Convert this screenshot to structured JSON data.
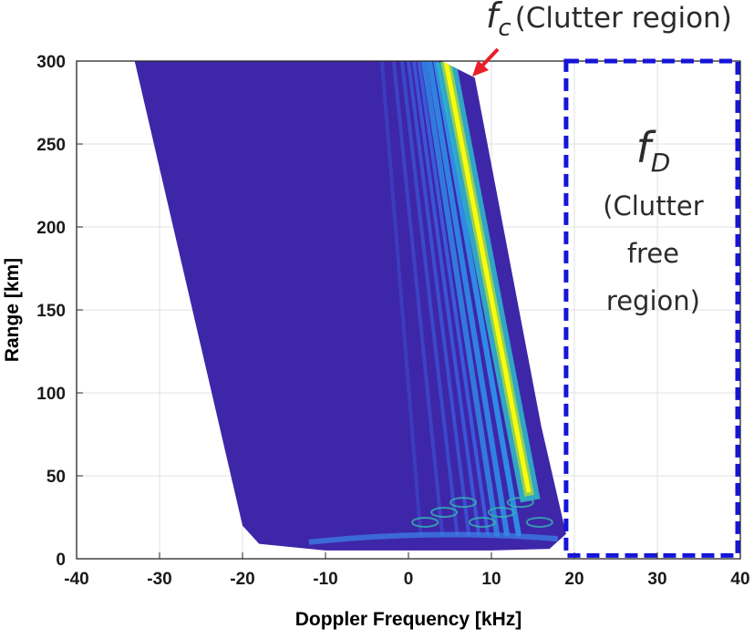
{
  "chart_data": {
    "type": "heatmap",
    "title": "",
    "xlabel": "Doppler Frequency [kHz]",
    "ylabel": "Range [km]",
    "xlim": [
      -40,
      40
    ],
    "ylim": [
      0,
      300
    ],
    "x_ticks": [
      "-40",
      "-30",
      "-20",
      "-10",
      "0",
      "10",
      "20",
      "30",
      "40"
    ],
    "y_ticks": [
      "0",
      "50",
      "100",
      "150",
      "200",
      "250",
      "300"
    ],
    "grid": true,
    "colormap": "parula",
    "colors": {
      "background_level": "#3e26a8",
      "peak_level": "#f9fb0e",
      "annotation_box": "#1515d8",
      "arrow": "#e8202a"
    },
    "clutter_region": {
      "left_edge": [
        [
          -33,
          300
        ],
        [
          -20,
          20
        ],
        [
          -18,
          9
        ],
        [
          -10,
          5
        ],
        [
          10,
          5
        ],
        [
          17,
          6
        ]
      ],
      "right_edge": [
        [
          4,
          300
        ],
        [
          8,
          290
        ],
        [
          16,
          80
        ],
        [
          19,
          15
        ],
        [
          17,
          6
        ]
      ],
      "peak_ridge": [
        [
          4.5,
          300
        ],
        [
          14.5,
          40
        ]
      ]
    },
    "annotations": {
      "fc_symbol": "f",
      "fc_subscript": "c",
      "fc_text": "(Clutter region)",
      "fd_symbol": "f",
      "fd_subscript": "D",
      "fd_line1": "(Clutter",
      "fd_line2": "free",
      "fd_line3": "region)",
      "free_region_box": {
        "x": [
          19,
          40
        ],
        "y": [
          2,
          300
        ]
      }
    }
  }
}
